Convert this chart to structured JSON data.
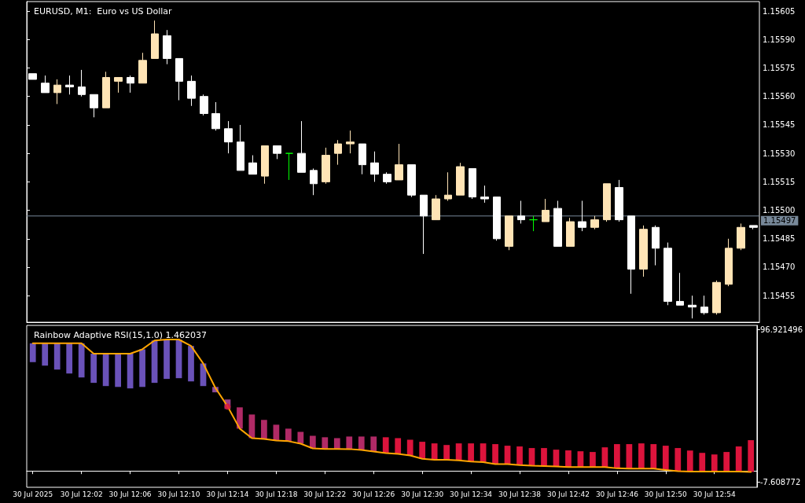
{
  "chart_data": [
    {
      "type": "candlestick",
      "title": "EURUSD, M1:  Euro vs US Dollar",
      "ohlc": [
        [
          1.15572,
          1.15572,
          1.15569,
          1.15569
        ],
        [
          1.15567,
          1.15571,
          1.15562,
          1.15562
        ],
        [
          1.15562,
          1.15569,
          1.15556,
          1.15566
        ],
        [
          1.15566,
          1.15571,
          1.15561,
          1.15565
        ],
        [
          1.15565,
          1.15574,
          1.1556,
          1.15561
        ],
        [
          1.15561,
          1.15561,
          1.15549,
          1.15554
        ],
        [
          1.15554,
          1.15573,
          1.15554,
          1.1557
        ],
        [
          1.15568,
          1.1557,
          1.15562,
          1.1557
        ],
        [
          1.1557,
          1.15571,
          1.15562,
          1.15567
        ],
        [
          1.15567,
          1.15583,
          1.15567,
          1.15579
        ],
        [
          1.1558,
          1.156,
          1.1558,
          1.15593
        ],
        [
          1.15592,
          1.15595,
          1.15577,
          1.1558
        ],
        [
          1.1558,
          1.1558,
          1.15558,
          1.15568
        ],
        [
          1.15568,
          1.15571,
          1.15555,
          1.15559
        ],
        [
          1.1556,
          1.15561,
          1.1555,
          1.15551
        ],
        [
          1.15551,
          1.15557,
          1.15542,
          1.15543
        ],
        [
          1.15543,
          1.15547,
          1.1553,
          1.15536
        ],
        [
          1.15536,
          1.15545,
          1.15521,
          1.15521
        ],
        [
          1.15525,
          1.15529,
          1.15519,
          1.15519
        ],
        [
          1.15518,
          1.15534,
          1.15514,
          1.15534
        ],
        [
          1.15534,
          1.15534,
          1.15527,
          1.1553
        ],
        [
          1.1553,
          1.1553,
          1.15516,
          1.1553
        ],
        [
          1.1553,
          1.15547,
          1.1552,
          1.1552
        ],
        [
          1.15521,
          1.15522,
          1.15508,
          1.15514
        ],
        [
          1.15515,
          1.15533,
          1.15514,
          1.15529
        ],
        [
          1.1553,
          1.15537,
          1.15524,
          1.15535
        ],
        [
          1.15535,
          1.15542,
          1.1553,
          1.15536
        ],
        [
          1.15535,
          1.15535,
          1.15519,
          1.15524
        ],
        [
          1.15525,
          1.15531,
          1.15515,
          1.15519
        ],
        [
          1.15519,
          1.1552,
          1.15514,
          1.15515
        ],
        [
          1.15516,
          1.15535,
          1.15516,
          1.15524
        ],
        [
          1.15524,
          1.15524,
          1.15507,
          1.15508
        ],
        [
          1.15508,
          1.15508,
          1.15477,
          1.15497
        ],
        [
          1.15495,
          1.15508,
          1.15495,
          1.15506
        ],
        [
          1.15506,
          1.1552,
          1.15505,
          1.15508
        ],
        [
          1.15508,
          1.15525,
          1.15508,
          1.15523
        ],
        [
          1.15522,
          1.15522,
          1.15506,
          1.15507
        ],
        [
          1.15507,
          1.15513,
          1.15504,
          1.15506
        ],
        [
          1.15507,
          1.15507,
          1.15484,
          1.15485
        ],
        [
          1.15481,
          1.15497,
          1.15479,
          1.15497
        ],
        [
          1.15497,
          1.15505,
          1.15493,
          1.15495
        ],
        [
          1.15495,
          1.15497,
          1.15489,
          1.15495
        ],
        [
          1.15494,
          1.15506,
          1.15494,
          1.155
        ],
        [
          1.15501,
          1.15505,
          1.15481,
          1.15481
        ],
        [
          1.15481,
          1.15496,
          1.15481,
          1.15494
        ],
        [
          1.15494,
          1.15505,
          1.15489,
          1.15491
        ],
        [
          1.15491,
          1.15497,
          1.1549,
          1.15495
        ],
        [
          1.15495,
          1.15514,
          1.15494,
          1.15514
        ],
        [
          1.15512,
          1.15516,
          1.15494,
          1.15495
        ],
        [
          1.15497,
          1.15497,
          1.15456,
          1.15469
        ],
        [
          1.15469,
          1.15492,
          1.15465,
          1.1549
        ],
        [
          1.15491,
          1.15492,
          1.15471,
          1.1548
        ],
        [
          1.1548,
          1.15483,
          1.1545,
          1.15452
        ],
        [
          1.15452,
          1.15467,
          1.1545,
          1.1545
        ],
        [
          1.1545,
          1.15455,
          1.15443,
          1.15449
        ],
        [
          1.15449,
          1.15455,
          1.15445,
          1.15446
        ],
        [
          1.15446,
          1.15463,
          1.15445,
          1.15462
        ],
        [
          1.15461,
          1.15485,
          1.1546,
          1.1548
        ],
        [
          1.1548,
          1.15493,
          1.15479,
          1.15491
        ],
        [
          1.15492,
          1.15492,
          1.1549,
          1.15491
        ]
      ],
      "colors": [
        "#ffffff",
        "#ffffff",
        "#ffe4b5",
        "#ffffff",
        "#ffffff",
        "#ffffff",
        "#ffe4b5",
        "#ffe4b5",
        "#ffffff",
        "#ffe4b5",
        "#ffe4b5",
        "#ffffff",
        "#ffffff",
        "#ffffff",
        "#ffffff",
        "#ffffff",
        "#ffffff",
        "#ffffff",
        "#ffffff",
        "#ffe4b5",
        "#ffffff",
        "#00ff00",
        "#ffffff",
        "#ffffff",
        "#ffe4b5",
        "#ffe4b5",
        "#ffe4b5",
        "#ffffff",
        "#ffffff",
        "#ffffff",
        "#ffe4b5",
        "#ffffff",
        "#ffffff",
        "#ffe4b5",
        "#ffe4b5",
        "#ffe4b5",
        "#ffffff",
        "#ffffff",
        "#ffffff",
        "#ffe4b5",
        "#ffffff",
        "#00ff00",
        "#ffe4b5",
        "#ffffff",
        "#ffe4b5",
        "#ffffff",
        "#ffe4b5",
        "#ffe4b5",
        "#ffffff",
        "#ffffff",
        "#ffe4b5",
        "#ffffff",
        "#ffffff",
        "#ffffff",
        "#ffffff",
        "#ffffff",
        "#ffe4b5",
        "#ffe4b5",
        "#ffe4b5",
        "#ffffff"
      ],
      "ylim": [
        1.15441,
        1.1561
      ],
      "yticks": [
        1.15455,
        {
          "value": 1.1547,
          "label": "1.15470"
        },
        1.15485,
        {
          "value": 1.155,
          "label": "1.15500"
        },
        1.15515,
        {
          "value": 1.1553,
          "label": "1.15530"
        },
        1.15545,
        {
          "value": 1.1556,
          "label": "1.15560"
        },
        1.15575,
        {
          "value": 1.1559,
          "label": "1.15590"
        },
        1.15605
      ],
      "ref_lines": [
        {
          "axis": "y",
          "value": 1.15497,
          "label": "1.15497",
          "color": "#778899"
        }
      ],
      "tick_labels": "y"
    },
    {
      "type": "bar",
      "title": "Rainbow Adaptive RSI(15,1.0) 1.462037",
      "categories": [
        "30 Jul 2025",
        null,
        null,
        null,
        "30 Jul 12:02",
        null,
        null,
        null,
        "30 Jul 12:06",
        null,
        null,
        null,
        "30 Jul 12:10",
        null,
        null,
        null,
        "30 Jul 12:14",
        null,
        null,
        null,
        "30 Jul 12:18",
        null,
        null,
        null,
        "30 Jul 12:22",
        null,
        null,
        null,
        "30 Jul 12:26",
        null,
        null,
        null,
        "30 Jul 12:30",
        null,
        null,
        null,
        "30 Jul 12:34",
        null,
        null,
        null,
        "30 Jul 12:38",
        null,
        null,
        null,
        "30 Jul 12:42",
        null,
        null,
        null,
        "30 Jul 12:46",
        null,
        null,
        null,
        "30 Jul 12:50",
        null,
        null,
        null,
        "30 Jul 12:54",
        null,
        null,
        null
      ],
      "ylim": [
        -11.2,
        99.8
      ],
      "yticks": [
        -7.608772,
        96.921496
      ],
      "series": [
        {
          "type": "bar",
          "values": [
            12.9,
            15.3,
            18.0,
            20.7,
            23.4,
            20.0,
            22.2,
            22.7,
            23.8,
            25.8,
            29.0,
            27.0,
            26.5,
            24.3,
            15.5,
            3.7,
            6.5,
            14.6,
            16.2,
            13.0,
            10.8,
            8.6,
            8.1,
            8.6,
            8.1,
            7.5,
            8.6,
            9.2,
            10.3,
            10.8,
            10.8,
            10.8,
            11.7,
            11.3,
            10.2,
            11.7,
            12.4,
            12.8,
            13.7,
            12.6,
            12.8,
            12.1,
            12.3,
            11.5,
            11.4,
            10.8,
            10.3,
            13.5,
            16.6,
            16.8,
            17.3,
            16.8,
            16.6,
            15.9,
            14.4,
            12.8,
            11.7,
            13.4,
            17.2,
            21.8
          ],
          "base": [
            74.6,
            72.2,
            69.5,
            66.8,
            64.1,
            60.4,
            58.2,
            57.6,
            56.6,
            57.6,
            60.4,
            63.1,
            63.6,
            61.4,
            58.2,
            53.9,
            42.5,
            29.0,
            22.5,
            22.0,
            20.9,
            20.4,
            18.7,
            15.5,
            15.0,
            15.0,
            15.0,
            14.4,
            13.3,
            12.3,
            11.7,
            10.6,
            8.3,
            7.6,
            7.6,
            7.2,
            6.5,
            6.1,
            4.7,
            4.7,
            4.0,
            3.6,
            3.4,
            3.1,
            2.7,
            2.7,
            2.7,
            2.7,
            1.8,
            1.6,
            1.6,
            1.6,
            0.7,
            -0.2,
            -0.4,
            -0.4,
            -0.4,
            -0.4,
            -0.4,
            -0.7
          ],
          "colors": [
            "#6a52b9",
            "#6a52b9",
            "#6a52b9",
            "#6a52b9",
            "#6a52b9",
            "#6a52b9",
            "#6a52b9",
            "#6a52b9",
            "#6a52b9",
            "#6a52b9",
            "#6a52b9",
            "#6a52b9",
            "#6a52b9",
            "#6a52b9",
            "#6a52b9",
            "#8c4a9b",
            "#9b3f88",
            "#b02a66",
            "#b02a66",
            "#b02a66",
            "#b02a66",
            "#b02a66",
            "#b02a66",
            "#b02a66",
            "#b02a66",
            "#b02a66",
            "#b02a66",
            "#b02a66",
            "#b02a66",
            "#dc143c",
            "#dc143c",
            "#dc143c",
            "#dc143c",
            "#dc143c",
            "#dc143c",
            "#dc143c",
            "#dc143c",
            "#dc143c",
            "#dc143c",
            "#dc143c",
            "#dc143c",
            "#dc143c",
            "#dc143c",
            "#dc143c",
            "#dc143c",
            "#dc143c",
            "#dc143c",
            "#dc143c",
            "#dc143c",
            "#dc143c",
            "#dc143c",
            "#dc143c",
            "#dc143c",
            "#dc143c",
            "#dc143c",
            "#dc143c",
            "#dc143c",
            "#dc143c",
            "#dc143c",
            "#dc143c"
          ]
        },
        {
          "type": "line",
          "color": "#ffa500",
          "marker": "none",
          "values": [
            87.5,
            87.5,
            87.5,
            87.5,
            87.5,
            80.4,
            80.4,
            80.4,
            80.4,
            83.4,
            89.4,
            90.1,
            90.1,
            85.7,
            73.7,
            57.0,
            44.3,
            29.0,
            22.5,
            22.0,
            20.9,
            20.4,
            18.7,
            15.5,
            15.1,
            15.1,
            15.0,
            14.4,
            13.3,
            12.3,
            11.7,
            10.6,
            8.3,
            7.6,
            7.6,
            7.2,
            6.5,
            6.1,
            4.7,
            4.7,
            4.0,
            3.6,
            3.4,
            3.1,
            2.7,
            2.7,
            2.7,
            2.7,
            1.8,
            1.6,
            1.6,
            1.6,
            0.7,
            -0.2,
            -0.4,
            -0.4,
            -0.4,
            -0.4,
            -0.4,
            -0.7
          ]
        },
        {
          "type": "scatter",
          "color": "#dc143c",
          "marker": "circle",
          "values": [
            null,
            null,
            null,
            null,
            null,
            null,
            null,
            null,
            null,
            null,
            null,
            null,
            null,
            null,
            null,
            null,
            44.1,
            null,
            null,
            null,
            null,
            null,
            null,
            null,
            null,
            null,
            null,
            null,
            null,
            null,
            null,
            null,
            null,
            null,
            null,
            null,
            null,
            null,
            null,
            null,
            null,
            null,
            null,
            null,
            null,
            null,
            null,
            null,
            null,
            null,
            null,
            null,
            null,
            null,
            null,
            null,
            null,
            null,
            null,
            null
          ]
        }
      ]
    }
  ]
}
